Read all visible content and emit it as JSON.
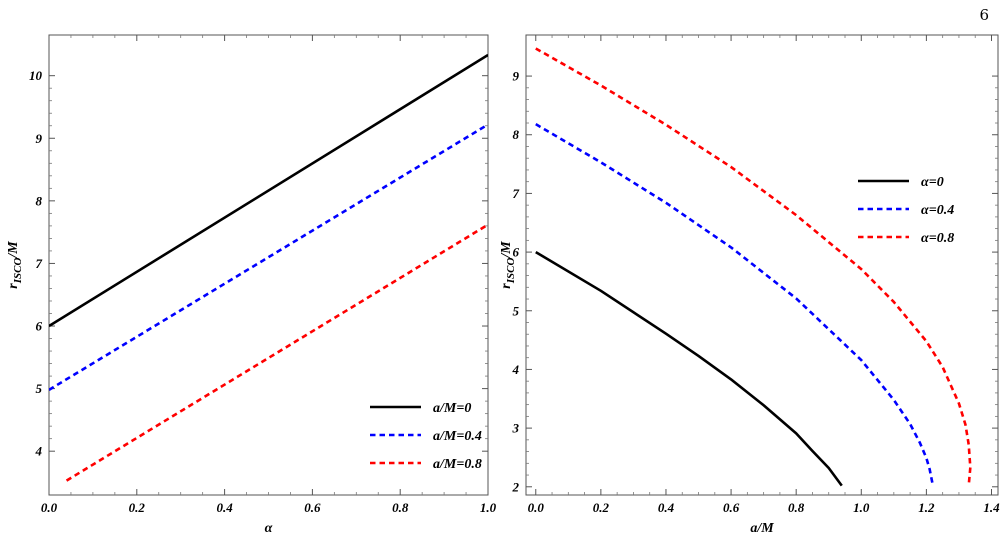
{
  "page_number": "6",
  "chart_data": [
    {
      "type": "line",
      "xlabel": "α",
      "ylabel": "r ISCO/M",
      "ylabel_main": "r",
      "ylabel_sub": "ISCO",
      "ylabel_tail": "/M",
      "xlim": [
        0,
        1
      ],
      "ylim": [
        3.3,
        10.65
      ],
      "x_ticks": [
        0.0,
        0.2,
        0.4,
        0.6,
        0.8,
        1.0
      ],
      "x_tick_labels": [
        "0.0",
        "0.2",
        "0.4",
        "0.6",
        "0.8",
        "1.0"
      ],
      "y_ticks": [
        4,
        5,
        6,
        7,
        8,
        9,
        10
      ],
      "y_tick_labels": [
        "4",
        "5",
        "6",
        "7",
        "8",
        "9",
        "10"
      ],
      "legend_position": "bottom-right",
      "series": [
        {
          "name": "a/M=0",
          "color": "#000000",
          "style": "solid",
          "x": [
            0.0,
            1.0
          ],
          "y": [
            6.0,
            10.33
          ]
        },
        {
          "name": "a/M=0.4",
          "color": "#0000ff",
          "style": "dashed",
          "x": [
            0.0,
            1.0
          ],
          "y": [
            4.98,
            9.22
          ]
        },
        {
          "name": "a/M=0.8",
          "color": "#ff0000",
          "style": "dashed",
          "x": [
            0.04,
            1.0
          ],
          "y": [
            3.53,
            7.62
          ]
        }
      ]
    },
    {
      "type": "line",
      "xlabel": "a/M",
      "ylabel": "r ISCO/M",
      "ylabel_main": "r",
      "ylabel_sub": "ISCO",
      "ylabel_tail": "/M",
      "xlim": [
        -0.03,
        1.42
      ],
      "ylim": [
        1.86,
        9.7
      ],
      "x_ticks": [
        0.0,
        0.2,
        0.4,
        0.6,
        0.8,
        1.0,
        1.2,
        1.4
      ],
      "x_tick_labels": [
        "0.0",
        "0.2",
        "0.4",
        "0.6",
        "0.8",
        "1.0",
        "1.2",
        "1.4"
      ],
      "y_ticks": [
        2,
        3,
        4,
        5,
        6,
        7,
        8,
        9
      ],
      "y_tick_labels": [
        "2",
        "3",
        "4",
        "5",
        "6",
        "7",
        "8",
        "9"
      ],
      "legend_position": "top-right",
      "series": [
        {
          "name": "α=0",
          "color": "#000000",
          "style": "solid",
          "x": [
            0.0,
            0.2,
            0.4,
            0.5,
            0.6,
            0.7,
            0.8,
            0.85,
            0.9,
            0.94
          ],
          "y": [
            6.0,
            5.34,
            4.61,
            4.23,
            3.83,
            3.39,
            2.91,
            2.61,
            2.32,
            2.02
          ]
        },
        {
          "name": "α=0.4",
          "color": "#0000ff",
          "style": "dashed",
          "x": [
            0.0,
            0.2,
            0.4,
            0.6,
            0.8,
            1.0,
            1.1,
            1.15,
            1.18,
            1.2,
            1.21,
            1.22
          ],
          "y": [
            8.18,
            7.53,
            6.84,
            6.08,
            5.21,
            4.16,
            3.48,
            3.07,
            2.75,
            2.49,
            2.3,
            2.02
          ]
        },
        {
          "name": "α=0.8",
          "color": "#ff0000",
          "style": "dashed",
          "x": [
            0.0,
            0.2,
            0.4,
            0.6,
            0.8,
            1.0,
            1.1,
            1.2,
            1.25,
            1.3,
            1.32,
            1.33,
            1.335,
            1.33
          ],
          "y": [
            9.47,
            8.84,
            8.17,
            7.45,
            6.63,
            5.71,
            5.15,
            4.48,
            4.04,
            3.42,
            3.06,
            2.72,
            2.33,
            2.02
          ]
        }
      ]
    }
  ]
}
